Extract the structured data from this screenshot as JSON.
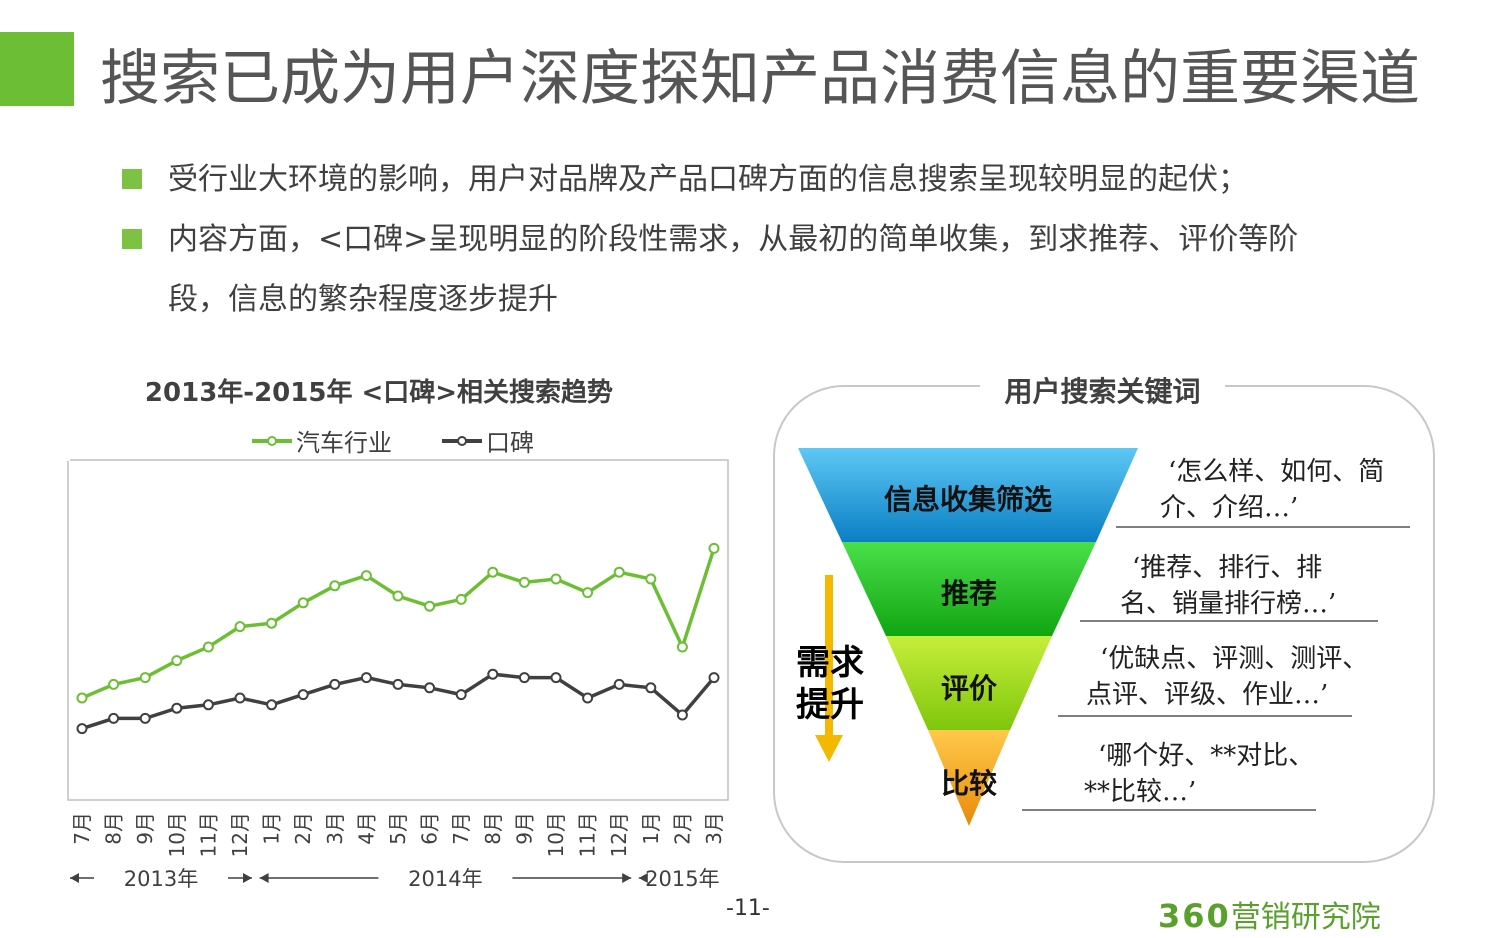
{
  "header": {
    "title": "搜索已成为用户深度探知产品消费信息的重要渠道"
  },
  "bullets": [
    "受行业大环境的影响，用户对品牌及产品口碑方面的信息搜索呈现较明显的起伏；",
    "内容方面，<口碑>呈现明显的阶段性需求，从最初的简单收集，到求推荐、评价等阶",
    "段，信息的繁杂程度逐步提升"
  ],
  "chart_data": {
    "type": "line",
    "title": "2013年-2015年 <口碑>相关搜索趋势",
    "categories": [
      "7月",
      "8月",
      "9月",
      "10月",
      "11月",
      "12月",
      "1月",
      "2月",
      "3月",
      "4月",
      "5月",
      "6月",
      "7月",
      "8月",
      "9月",
      "10月",
      "11月",
      "12月",
      "1月",
      "2月",
      "3月"
    ],
    "year_groups": [
      {
        "label": "2013年",
        "start": 0,
        "end": 5
      },
      {
        "label": "2014年",
        "start": 6,
        "end": 17
      },
      {
        "label": "2015年",
        "start": 18,
        "end": 20
      }
    ],
    "series": [
      {
        "name": "汽车行业",
        "color": "#6cbf35",
        "values": [
          30,
          34,
          36,
          41,
          45,
          51,
          52,
          58,
          63,
          66,
          60,
          57,
          59,
          67,
          64,
          65,
          61,
          67,
          65,
          45,
          74
        ]
      },
      {
        "name": "口碑",
        "color": "#404040",
        "values": [
          21,
          24,
          24,
          27,
          28,
          30,
          28,
          31,
          34,
          36,
          34,
          33,
          31,
          37,
          36,
          36,
          30,
          34,
          33,
          25,
          36
        ]
      }
    ],
    "ylim": [
      0,
      100
    ],
    "legend": "top"
  },
  "keywords": {
    "title": "用户搜索关键词",
    "stages": [
      {
        "label": "信息收集筛选",
        "color": "#1f9fe0",
        "lines": [
          "‘怎么样、如何、简",
          "介、介绍…’"
        ]
      },
      {
        "label": "推荐",
        "color": "#22c722",
        "lines": [
          "‘推荐、排行、排",
          "名、销量排行榜…’"
        ]
      },
      {
        "label": "评价",
        "color": "#9fd916",
        "lines": [
          "‘优缺点、评测、测评、",
          "点评、评级、作业…’"
        ]
      },
      {
        "label": "比较",
        "color": "#f5a318",
        "lines": [
          "‘哪个好、**对比、",
          "**比较…’"
        ]
      }
    ],
    "demand_label": [
      "需求",
      "提升"
    ]
  },
  "footer": {
    "page": "-11-",
    "brand_num": "360",
    "brand_text": "营销研究院"
  },
  "colors": {
    "accent": "#6cbf35",
    "arrow": "#f5b800"
  }
}
